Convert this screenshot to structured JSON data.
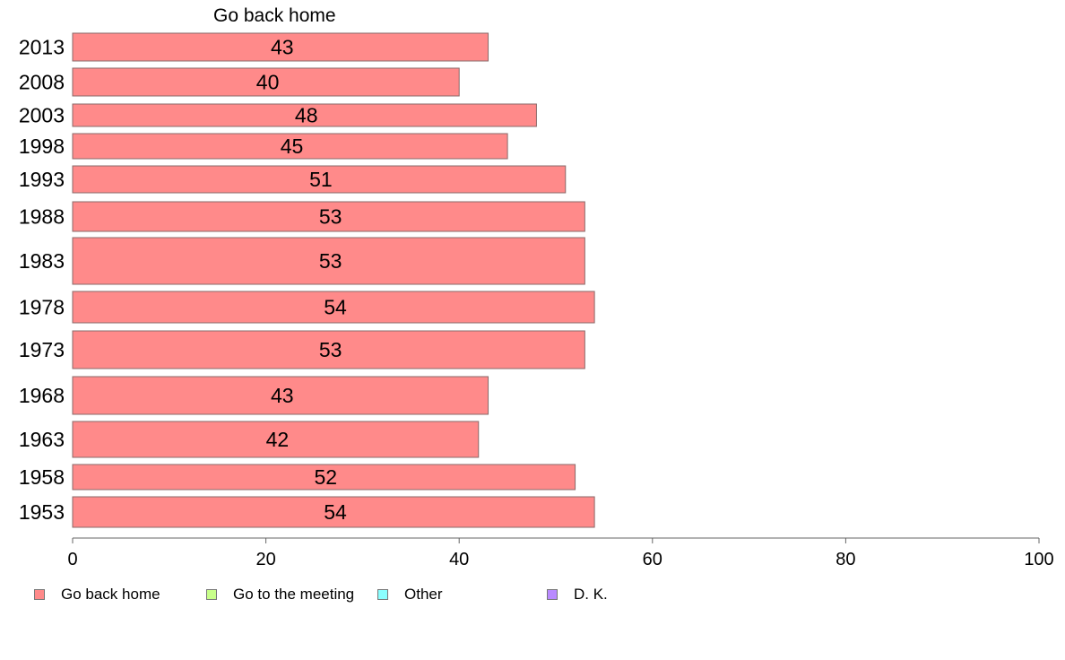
{
  "chart_data": {
    "type": "bar",
    "orientation": "horizontal",
    "panel_title": "Go back home",
    "categories": [
      "2013",
      "2008",
      "2003",
      "1998",
      "1993",
      "1988",
      "1983",
      "1978",
      "1973",
      "1968",
      "1963",
      "1958",
      "1953"
    ],
    "series": [
      {
        "name": "Go back home",
        "values": [
          43,
          40,
          48,
          45,
          51,
          53,
          53,
          54,
          53,
          43,
          42,
          52,
          54
        ],
        "color": "#ff8a8a"
      }
    ],
    "xlim": [
      0,
      100
    ],
    "xticks": [
      "0",
      "20",
      "40",
      "60",
      "80",
      "100"
    ],
    "legend": [
      {
        "label": "Go back home",
        "color": "#ff8a8a"
      },
      {
        "label": "Go to the meeting",
        "color": "#c8ff8a"
      },
      {
        "label": "Other",
        "color": "#8affff"
      },
      {
        "label": "D. K.",
        "color": "#b98aff"
      }
    ],
    "legend_position": "bottom",
    "grid": false
  }
}
